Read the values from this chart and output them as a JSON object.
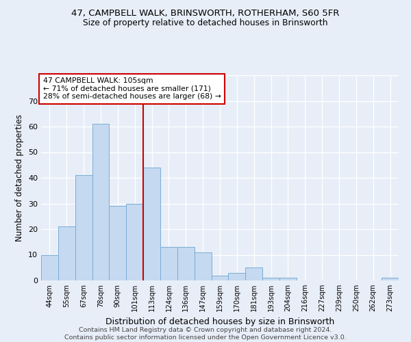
{
  "title1": "47, CAMPBELL WALK, BRINSWORTH, ROTHERHAM, S60 5FR",
  "title2": "Size of property relative to detached houses in Brinsworth",
  "xlabel": "Distribution of detached houses by size in Brinsworth",
  "ylabel": "Number of detached properties",
  "bar_labels": [
    "44sqm",
    "55sqm",
    "67sqm",
    "78sqm",
    "90sqm",
    "101sqm",
    "113sqm",
    "124sqm",
    "136sqm",
    "147sqm",
    "159sqm",
    "170sqm",
    "181sqm",
    "193sqm",
    "204sqm",
    "216sqm",
    "227sqm",
    "239sqm",
    "250sqm",
    "262sqm",
    "273sqm"
  ],
  "bar_values": [
    10,
    21,
    41,
    61,
    29,
    30,
    44,
    13,
    13,
    11,
    2,
    3,
    5,
    1,
    1,
    0,
    0,
    0,
    0,
    0,
    1
  ],
  "bar_color": "#c5d9f0",
  "bar_edgecolor": "#7aadd4",
  "property_label": "47 CAMPBELL WALK: 105sqm",
  "annotation_line1": "← 71% of detached houses are smaller (171)",
  "annotation_line2": "28% of semi-detached houses are larger (68) →",
  "vline_color": "#cc0000",
  "vline_x_index": 5.5,
  "annotation_box_color": "#ffffff",
  "annotation_box_edgecolor": "#cc0000",
  "ylim": [
    0,
    80
  ],
  "yticks": [
    0,
    10,
    20,
    30,
    40,
    50,
    60,
    70,
    80
  ],
  "footer": "Contains HM Land Registry data © Crown copyright and database right 2024.\nContains public sector information licensed under the Open Government Licence v3.0.",
  "bg_color": "#e8eef8",
  "plot_bg_color": "#e8eef8"
}
